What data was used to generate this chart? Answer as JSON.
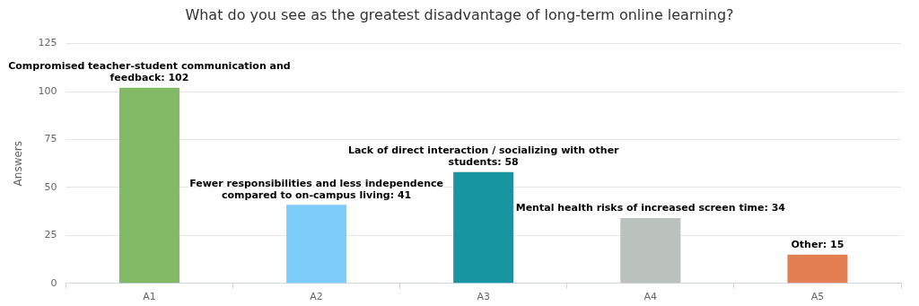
{
  "chart_data": {
    "type": "bar",
    "title": "What do you see as the greatest disadvantage of long-term online learning?",
    "ylabel": "Answers",
    "categories": [
      "A1",
      "A2",
      "A3",
      "A4",
      "A5"
    ],
    "values": [
      102,
      41,
      58,
      34,
      15
    ],
    "colors": [
      "#82b964",
      "#7dcdfb",
      "#1796a2",
      "#bbc1bc",
      "#e37f53"
    ],
    "value_labels": [
      "Compromised teacher-student communication and feedback: 102",
      "Fewer responsibilities and less independence compared to on-campus living: 41",
      "Lack of direct interaction / socializing with other students: 58",
      "Mental health risks of increased screen time: 34",
      "Other: 15"
    ],
    "ylim": [
      0,
      125
    ],
    "yticks": [
      0,
      25,
      50,
      75,
      100,
      125
    ],
    "grid": "y",
    "legend": false
  }
}
